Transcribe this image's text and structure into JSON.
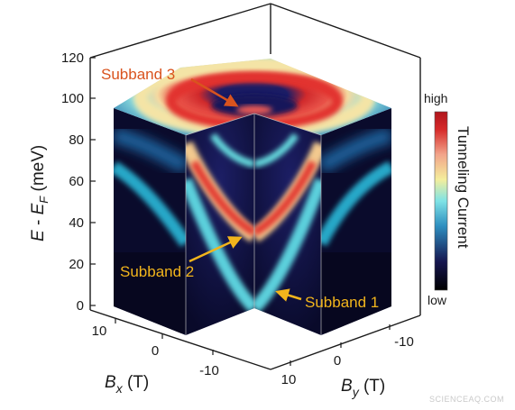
{
  "chart_data": {
    "type": "heatmap",
    "title": "",
    "z_axis": {
      "label_E": "E",
      "label_EF": "E",
      "label_F": "F",
      "label_minus": " - ",
      "label_unit": " (meV)",
      "range": [
        0,
        120
      ],
      "ticks": [
        "0",
        "20",
        "40",
        "60",
        "80",
        "100",
        "120"
      ]
    },
    "x_axis": {
      "label_B": "B",
      "label_sub": "x",
      "label_unit": " (T)",
      "range": [
        -15,
        15
      ],
      "ticks": [
        "10",
        "0",
        "-10"
      ]
    },
    "y_axis": {
      "label_B": "B",
      "label_sub": "y",
      "label_unit": " (T)",
      "range": [
        -15,
        15
      ],
      "ticks": [
        "10",
        "0",
        "-10"
      ]
    },
    "colorbar": {
      "title": "Tunneling Current",
      "high_label": "high",
      "low_label": "low",
      "colors": [
        "#000000",
        "#16164f",
        "#2e8fc0",
        "#7fe3e6",
        "#f4ee9c",
        "#f2a48a",
        "#d62a2a",
        "#b0151c"
      ]
    },
    "subbands": [
      {
        "name": "Subband 1",
        "onset_energy_meV": 2,
        "color": "#f2b51c"
      },
      {
        "name": "Subband 2",
        "onset_energy_meV": 36,
        "color": "#f2b51c"
      },
      {
        "name": "Subband 3",
        "onset_energy_meV": 100,
        "color": "#d9531e"
      }
    ]
  },
  "watermark": "SCIENCEAQ.COM"
}
